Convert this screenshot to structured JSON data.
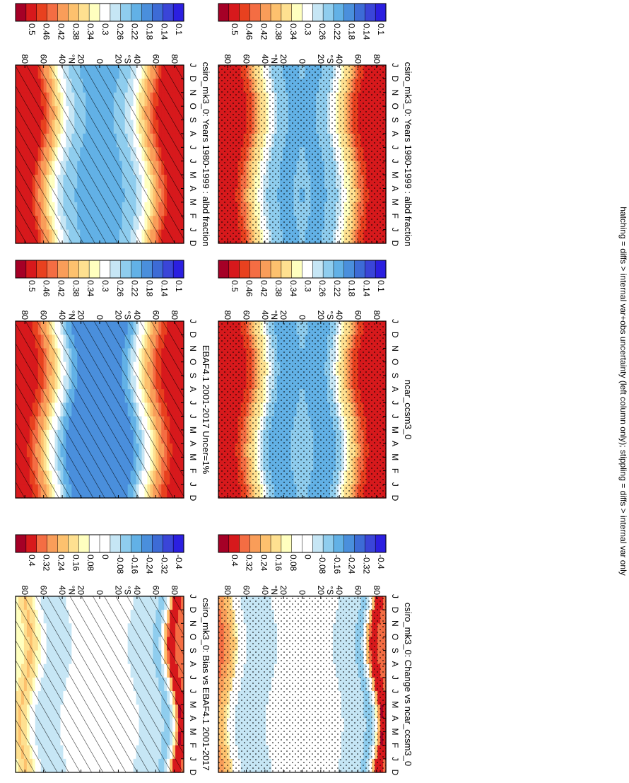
{
  "footnote": "hatching = diffs > internal var+obs uncertainty (left column only); stippling = diffs > internal var only",
  "month_ticks": [
    "D",
    "J",
    "F",
    "M",
    "A",
    "M",
    "J",
    "J",
    "A",
    "S",
    "O",
    "N",
    "D",
    "J"
  ],
  "lat_ticks": [
    "80",
    "60",
    "40",
    "20",
    "0",
    "20",
    "40",
    "60",
    "80"
  ],
  "lat_unit_n": "°N",
  "lat_unit_s": "°S",
  "colorbar_abs": [
    "0.5",
    "0.46",
    "0.42",
    "0.38",
    "0.34",
    "0.3",
    "0.26",
    "0.22",
    "0.18",
    "0.14",
    "0.1"
  ],
  "colorbar_diff": [
    "0.4",
    "0.32",
    "0.24",
    "0.16",
    "0.08",
    "0",
    "-0.08",
    "-0.16",
    "-0.24",
    "-0.32",
    "-0.4"
  ],
  "colors": {
    "abs_scale": [
      "#a50026",
      "#d7191c",
      "#e8411f",
      "#f46d43",
      "#f99d59",
      "#fdc16e",
      "#fee090",
      "#ffffbf",
      "#ffffff",
      "#c6e6f5",
      "#8fcdee",
      "#62b1e6",
      "#4a8fdc",
      "#3d6bd6",
      "#3a45d8",
      "#2b1fe0"
    ],
    "diff_scale": [
      "#a50026",
      "#d7191c",
      "#f46d43",
      "#f99d59",
      "#fdc16e",
      "#fee090",
      "#ffffbf",
      "#ffffff",
      "#ffffff",
      "#c6e6f5",
      "#8fcdee",
      "#62b1e6",
      "#4a8fdc",
      "#3d6bd6",
      "#3a45d8",
      "#2b1fe0"
    ]
  },
  "chart_data": [
    {
      "panel": "model-climatology",
      "type": "heatmap",
      "title": "csiro_mk3_0: Years 1980-1999 : albd fraction",
      "xlabel": "",
      "ylabel": "",
      "x_range": [
        "D",
        "J"
      ],
      "y_range": [
        -90,
        90
      ],
      "overlay": "hatching",
      "colorbar": "abs",
      "profile": {
        "lat": [
          -90,
          -70,
          -60,
          -50,
          -40,
          -30,
          -15,
          0,
          15,
          30,
          40,
          50,
          60,
          70,
          90
        ],
        "value": [
          0.5,
          0.5,
          0.44,
          0.36,
          0.3,
          0.26,
          0.24,
          0.24,
          0.24,
          0.26,
          0.3,
          0.36,
          0.44,
          0.5,
          0.5
        ]
      }
    },
    {
      "panel": "model-climatology-stippled",
      "type": "heatmap",
      "title": "csiro_mk3_0: Years 1980-1999 : albd fraction",
      "xlabel": "",
      "ylabel": "",
      "x_range": [
        "D",
        "J"
      ],
      "y_range": [
        -90,
        90
      ],
      "overlay": "stippling",
      "colorbar": "abs",
      "profile": {
        "lat": [
          -90,
          -70,
          -60,
          -50,
          -40,
          -30,
          -15,
          0,
          15,
          30,
          40,
          50,
          60,
          70,
          90
        ],
        "value": [
          0.5,
          0.5,
          0.46,
          0.38,
          0.32,
          0.26,
          0.24,
          0.25,
          0.24,
          0.26,
          0.32,
          0.38,
          0.46,
          0.5,
          0.5
        ]
      }
    },
    {
      "panel": "observations",
      "type": "heatmap",
      "title": "EBAF4.1 2001-2017 Uncer=1%",
      "xlabel": "",
      "ylabel": "",
      "x_range": [
        "D",
        "J"
      ],
      "y_range": [
        -90,
        90
      ],
      "overlay": "hatching",
      "colorbar": "abs",
      "profile": {
        "lat": [
          -90,
          -70,
          -60,
          -50,
          -40,
          -30,
          -15,
          0,
          15,
          30,
          40,
          50,
          60,
          70,
          90
        ],
        "value": [
          0.5,
          0.48,
          0.42,
          0.34,
          0.28,
          0.22,
          0.2,
          0.22,
          0.2,
          0.22,
          0.28,
          0.34,
          0.42,
          0.48,
          0.5
        ]
      }
    },
    {
      "panel": "comparison-model",
      "type": "heatmap",
      "title": "ncar_ccsm3_0",
      "xlabel": "",
      "ylabel": "",
      "x_range": [
        "D",
        "J"
      ],
      "y_range": [
        -90,
        90
      ],
      "overlay": "stippling",
      "colorbar": "abs",
      "profile": {
        "lat": [
          -90,
          -70,
          -60,
          -50,
          -40,
          -30,
          -15,
          0,
          15,
          30,
          40,
          50,
          60,
          70,
          90
        ],
        "value": [
          0.5,
          0.5,
          0.46,
          0.38,
          0.3,
          0.24,
          0.23,
          0.26,
          0.23,
          0.24,
          0.3,
          0.38,
          0.46,
          0.5,
          0.5
        ]
      }
    },
    {
      "panel": "bias",
      "type": "heatmap",
      "title": "csiro_mk3_0: Bias vs EBAF4.1 2001-2017",
      "xlabel": "",
      "ylabel": "",
      "x_range": [
        "D",
        "J"
      ],
      "y_range": [
        -90,
        90
      ],
      "overlay": "hatching",
      "colorbar": "diff",
      "profile": {
        "lat": [
          -90,
          -80,
          -70,
          -60,
          -45,
          -30,
          -15,
          0,
          15,
          30,
          45,
          60,
          70,
          80,
          90
        ],
        "value": [
          0.3,
          0.4,
          -0.1,
          -0.08,
          -0.08,
          0.0,
          0.04,
          0.02,
          0.04,
          0.0,
          -0.08,
          -0.08,
          0.1,
          0.2,
          0.1
        ]
      }
    },
    {
      "panel": "change",
      "type": "heatmap",
      "title": "csiro_mk3_0: Change vs ncar_ccsm3_0",
      "xlabel": "",
      "ylabel": "",
      "x_range": [
        "D",
        "J"
      ],
      "y_range": [
        -90,
        90
      ],
      "overlay": "stippling",
      "colorbar": "diff",
      "profile": {
        "lat": [
          -90,
          -80,
          -70,
          -60,
          -45,
          -30,
          -15,
          0,
          15,
          30,
          45,
          60,
          70,
          80,
          90
        ],
        "value": [
          0.3,
          0.4,
          -0.1,
          -0.08,
          -0.06,
          0.0,
          0.0,
          0.0,
          0.0,
          -0.02,
          -0.08,
          -0.08,
          0.0,
          0.2,
          0.3
        ]
      }
    }
  ]
}
